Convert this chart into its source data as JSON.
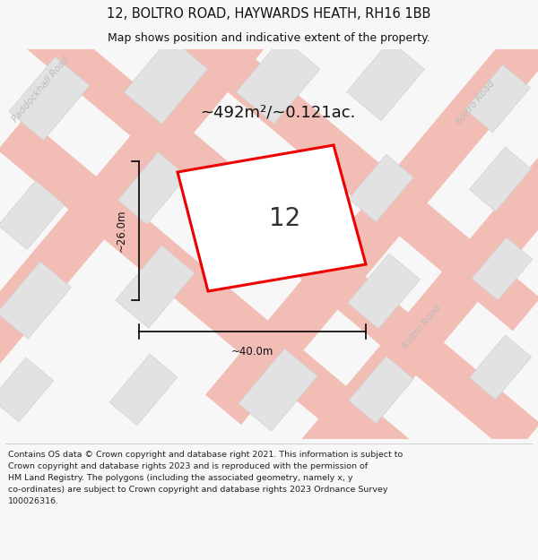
{
  "title": "12, BOLTRO ROAD, HAYWARDS HEATH, RH16 1BB",
  "subtitle": "Map shows position and indicative extent of the property.",
  "footer_line1": "Contains OS data © Crown copyright and database right 2021. This information is subject to",
  "footer_line2": "Crown copyright and database rights 2023 and is reproduced with the permission of",
  "footer_line3": "HM Land Registry. The polygons (including the associated geometry, namely x, y",
  "footer_line4": "co-ordinates) are subject to Crown copyright and database rights 2023 Ordnance Survey",
  "footer_line5": "100026316.",
  "area_label": "~492m²/~0.121ac.",
  "parcel_label": "12",
  "dim_width": "~40.0m",
  "dim_height": "~26.0m",
  "bg_color": "#f7f7f7",
  "map_bg": "#efefed",
  "road_color": "#f2bdb5",
  "building_color": "#e2e2e2",
  "building_stroke": "#d0d0d0",
  "parcel_fill": "#ffffff",
  "parcel_stroke": "#ee0000",
  "road_label_color": "#bbbbbb",
  "title_color": "#111111",
  "footer_color": "#222222",
  "dim_color": "#111111",
  "area_label_color": "#111111",
  "parcel_label_color": "#333333"
}
